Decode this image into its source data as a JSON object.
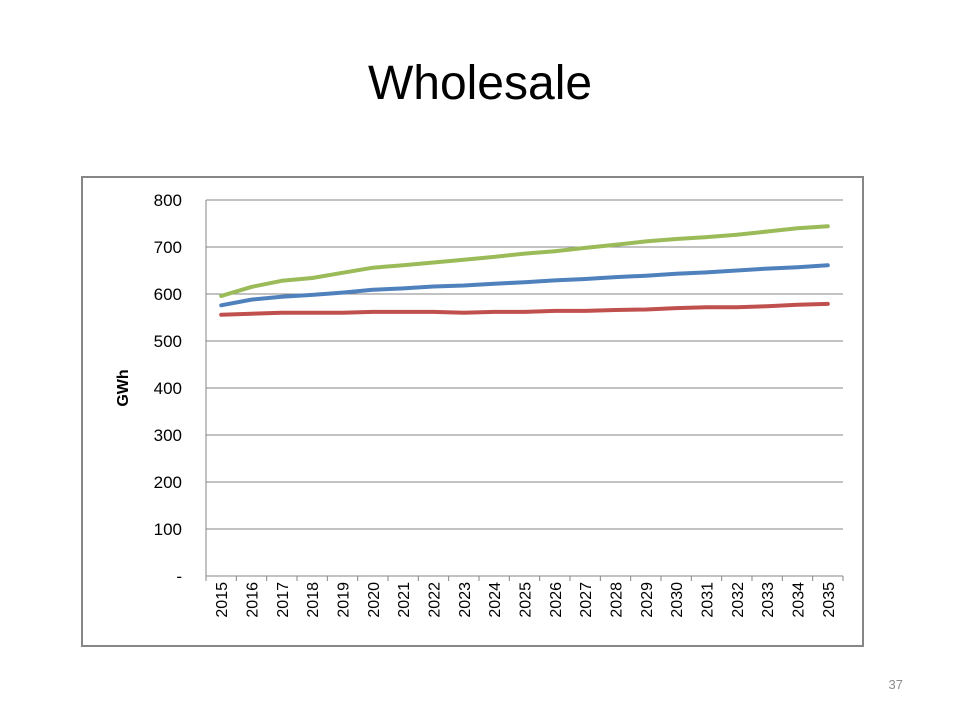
{
  "slide": {
    "title": "Wholesale",
    "page_number": "37"
  },
  "chart_data": {
    "type": "line",
    "ylabel": "GWh",
    "xlabel": "",
    "ylim": [
      0,
      800
    ],
    "y_ticks": [
      "-",
      "100",
      "200",
      "300",
      "400",
      "500",
      "600",
      "700",
      "800"
    ],
    "grid": true,
    "legend": "none",
    "categories": [
      "2015",
      "2016",
      "2017",
      "2018",
      "2019",
      "2020",
      "2021",
      "2022",
      "2023",
      "2024",
      "2025",
      "2026",
      "2027",
      "2028",
      "2029",
      "2030",
      "2031",
      "2032",
      "2033",
      "2034",
      "2035"
    ],
    "series": [
      {
        "color": "#9bbb59",
        "values": [
          596,
          615,
          628,
          634,
          645,
          656,
          661,
          667,
          673,
          679,
          686,
          691,
          698,
          705,
          712,
          717,
          721,
          726,
          733,
          740,
          744
        ]
      },
      {
        "color": "#4f81bd",
        "values": [
          576,
          588,
          594,
          598,
          603,
          609,
          612,
          616,
          618,
          622,
          625,
          629,
          632,
          636,
          639,
          643,
          646,
          650,
          654,
          657,
          661
        ]
      },
      {
        "color": "#c0504d",
        "values": [
          556,
          558,
          560,
          560,
          560,
          562,
          562,
          562,
          560,
          562,
          562,
          564,
          564,
          566,
          567,
          570,
          572,
          572,
          574,
          577,
          579
        ]
      }
    ]
  }
}
